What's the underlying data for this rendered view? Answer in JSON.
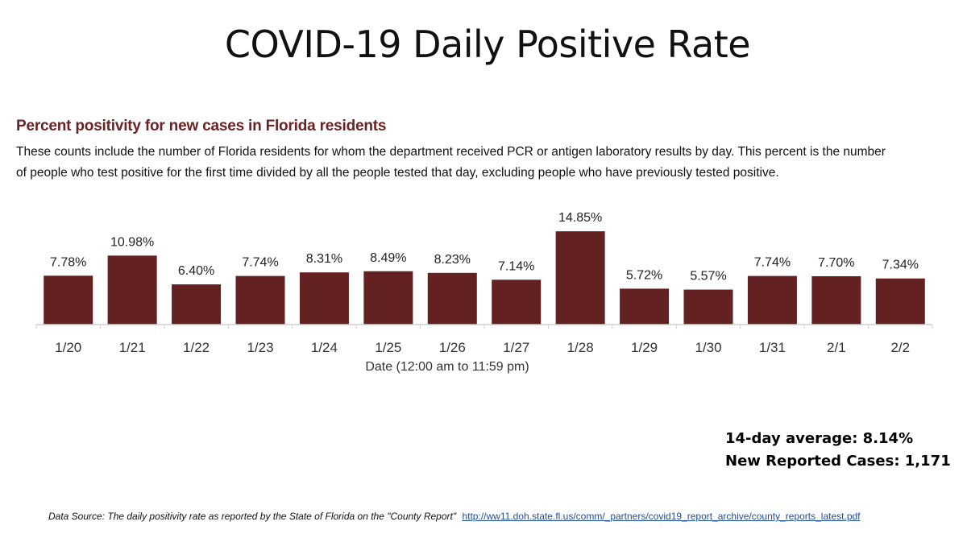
{
  "slide": {
    "title": "COVID-19 Daily Positive Rate"
  },
  "chart_heading": "Percent positivity for new cases in Florida residents",
  "chart_description": "These counts include the number of Florida residents for whom the department received PCR or antigen laboratory results by day. This percent is the number of people who test positive for the first time divided by all the people tested that day, excluding people who have previously tested positive.",
  "chart_data": {
    "type": "bar",
    "title": "Percent positivity for new cases in Florida residents",
    "xlabel": "Date (12:00 am to 11:59 pm)",
    "ylabel": "",
    "categories": [
      "1/20",
      "1/21",
      "1/22",
      "1/23",
      "1/24",
      "1/25",
      "1/26",
      "1/27",
      "1/28",
      "1/29",
      "1/30",
      "1/31",
      "2/1",
      "2/2"
    ],
    "values": [
      7.78,
      10.98,
      6.4,
      7.74,
      8.31,
      8.49,
      8.23,
      7.14,
      14.85,
      5.72,
      5.57,
      7.74,
      7.7,
      7.34
    ],
    "data_labels": [
      "7.78%",
      "10.98%",
      "6.40%",
      "7.74%",
      "8.31%",
      "8.49%",
      "8.23%",
      "7.14%",
      "14.85%",
      "5.72%",
      "5.57%",
      "7.74%",
      "7.70%",
      "7.34%"
    ],
    "ylim": [
      0,
      15
    ],
    "grid": false,
    "bar_color": "#632121"
  },
  "stats": {
    "average_label": "14-day average: 8.14%",
    "cases_label": "New Reported Cases: 1,171"
  },
  "footer": {
    "source_text": "Data Source: The daily positivity rate as reported by the State of Florida on the \"County Report\"",
    "link_text": "http://ww11.doh.state.fl.us/comm/_partners/covid19_report_archive/county_reports_latest.pdf"
  }
}
